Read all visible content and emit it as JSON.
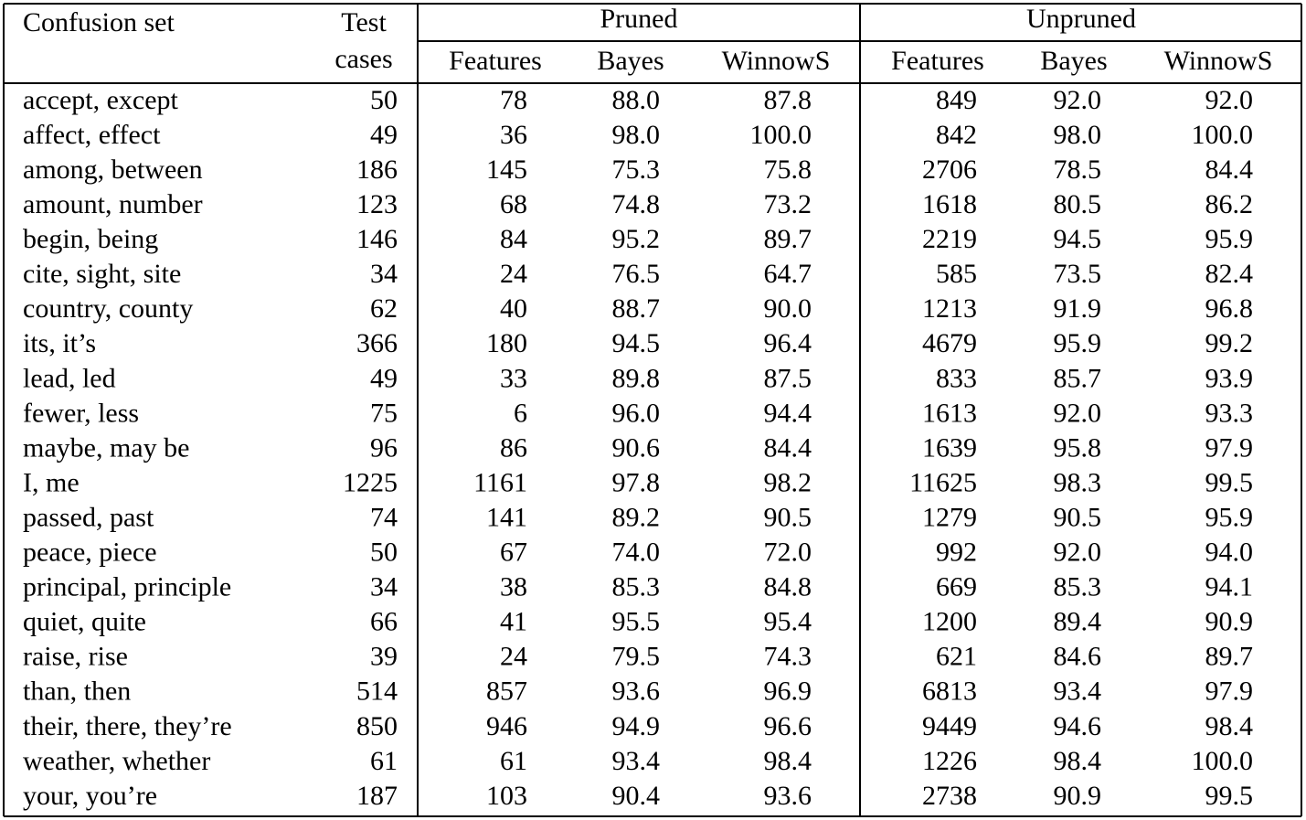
{
  "table": {
    "header": {
      "confusion_set": "Confusion set",
      "test_top": "Test",
      "test_bottom": "cases",
      "pruned": "Pruned",
      "unpruned": "Unpruned",
      "sub": [
        "Features",
        "Bayes",
        "WinnowS",
        "Features",
        "Bayes",
        "WinnowS"
      ]
    },
    "rows": [
      [
        "accept, except",
        "50",
        "78",
        "88.0",
        "87.8",
        "849",
        "92.0",
        "92.0"
      ],
      [
        "affect, effect",
        "49",
        "36",
        "98.0",
        "100.0",
        "842",
        "98.0",
        "100.0"
      ],
      [
        "among, between",
        "186",
        "145",
        "75.3",
        "75.8",
        "2706",
        "78.5",
        "84.4"
      ],
      [
        "amount, number",
        "123",
        "68",
        "74.8",
        "73.2",
        "1618",
        "80.5",
        "86.2"
      ],
      [
        "begin, being",
        "146",
        "84",
        "95.2",
        "89.7",
        "2219",
        "94.5",
        "95.9"
      ],
      [
        "cite, sight, site",
        "34",
        "24",
        "76.5",
        "64.7",
        "585",
        "73.5",
        "82.4"
      ],
      [
        "country, county",
        "62",
        "40",
        "88.7",
        "90.0",
        "1213",
        "91.9",
        "96.8"
      ],
      [
        "its, it’s",
        "366",
        "180",
        "94.5",
        "96.4",
        "4679",
        "95.9",
        "99.2"
      ],
      [
        "lead, led",
        "49",
        "33",
        "89.8",
        "87.5",
        "833",
        "85.7",
        "93.9"
      ],
      [
        "fewer, less",
        "75",
        "6",
        "96.0",
        "94.4",
        "1613",
        "92.0",
        "93.3"
      ],
      [
        "maybe, may be",
        "96",
        "86",
        "90.6",
        "84.4",
        "1639",
        "95.8",
        "97.9"
      ],
      [
        "I, me",
        "1225",
        "1161",
        "97.8",
        "98.2",
        "11625",
        "98.3",
        "99.5"
      ],
      [
        "passed, past",
        "74",
        "141",
        "89.2",
        "90.5",
        "1279",
        "90.5",
        "95.9"
      ],
      [
        "peace, piece",
        "50",
        "67",
        "74.0",
        "72.0",
        "992",
        "92.0",
        "94.0"
      ],
      [
        "principal, principle",
        "34",
        "38",
        "85.3",
        "84.8",
        "669",
        "85.3",
        "94.1"
      ],
      [
        "quiet, quite",
        "66",
        "41",
        "95.5",
        "95.4",
        "1200",
        "89.4",
        "90.9"
      ],
      [
        "raise, rise",
        "39",
        "24",
        "79.5",
        "74.3",
        "621",
        "84.6",
        "89.7"
      ],
      [
        "than, then",
        "514",
        "857",
        "93.6",
        "96.9",
        "6813",
        "93.4",
        "97.9"
      ],
      [
        "their, there, they’re",
        "850",
        "946",
        "94.9",
        "96.6",
        "9449",
        "94.6",
        "98.4"
      ],
      [
        "weather, whether",
        "61",
        "61",
        "93.4",
        "98.4",
        "1226",
        "98.4",
        "100.0"
      ],
      [
        "your, you’re",
        "187",
        "103",
        "90.4",
        "93.6",
        "2738",
        "90.9",
        "99.5"
      ]
    ]
  }
}
